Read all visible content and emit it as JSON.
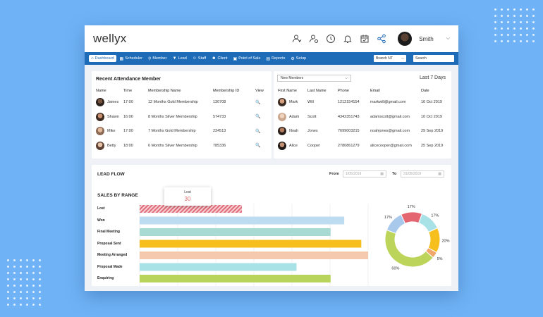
{
  "app": {
    "logo": "wellyx",
    "user_name": "Smith"
  },
  "top_icons": [
    "add-user-icon",
    "user-settings-icon",
    "clock-icon",
    "bell-icon",
    "calendar-icon",
    "share-icon"
  ],
  "nav": {
    "items": [
      {
        "label": "Dashboard",
        "icon": "home-icon",
        "active": true
      },
      {
        "label": "Scheduler",
        "icon": "calendar-icon"
      },
      {
        "label": "Member",
        "icon": "members-icon"
      },
      {
        "label": "Lead",
        "icon": "funnel-icon"
      },
      {
        "label": "Staff",
        "icon": "staff-icon"
      },
      {
        "label": "Client",
        "icon": "client-icon"
      },
      {
        "label": "Point of Sale",
        "icon": "monitor-icon"
      },
      {
        "label": "Reports",
        "icon": "reports-icon"
      },
      {
        "label": "Setup",
        "icon": "gear-icon"
      }
    ],
    "branch": "Branch NT",
    "search_placeholder": "Search"
  },
  "attendance": {
    "title": "Recent Attendance Member",
    "columns": [
      "Name",
      "Time",
      "Membership Name",
      "Membership ID",
      "View"
    ],
    "rows": [
      {
        "name": "James",
        "time": "17:00",
        "membership": "12 Months Gold Membership",
        "id": "130708"
      },
      {
        "name": "Shawn",
        "time": "16:00",
        "membership": "8 Months Silver Membership",
        "id": "574733"
      },
      {
        "name": "Mike",
        "time": "17:00",
        "membership": "7 Months Gold Membership",
        "id": "234513"
      },
      {
        "name": "Betty",
        "time": "18:00",
        "membership": "6 Months Silver Membership",
        "id": "785336"
      }
    ]
  },
  "members": {
    "dropdown": "New Members",
    "period": "Last 7 Days",
    "columns": [
      "First Name",
      "Last Name",
      "Phone",
      "Email",
      "Date"
    ],
    "rows": [
      {
        "first": "Mark",
        "last": "Will",
        "phone": "1212154154",
        "email": "markwill@gmail.com",
        "date": "16 Oct 2019"
      },
      {
        "first": "Adam",
        "last": "Scott",
        "phone": "4342351743",
        "email": "adamscott@gmail.com",
        "date": "10 Oct 2019"
      },
      {
        "first": "Noah",
        "last": "Jones",
        "phone": "7699003215",
        "email": "noahjones@gmail.com",
        "date": "29 Sep 2019"
      },
      {
        "first": "Alice",
        "last": "Cooper",
        "phone": "2780861279",
        "email": "alicecooper@gmail.com",
        "date": "25 Sep 2019"
      }
    ]
  },
  "lead_flow": {
    "title": "LEAD FLOW",
    "from_label": "From",
    "from_value": "1/05/2019",
    "to_label": "To",
    "to_value": "31/05/2019"
  },
  "chart_data": [
    {
      "type": "bar",
      "orientation": "horizontal",
      "title": "SALES BY RANGE",
      "categories": [
        "Lost",
        "Won",
        "Final Meeting",
        "Proposal Sent",
        "Meeting Arranged",
        "Proposal Made",
        "Enquiring"
      ],
      "values": [
        30,
        60,
        56,
        65,
        67,
        46,
        56
      ],
      "colors": [
        "#e06b78",
        "#bddcf2",
        "#a8dad3",
        "#f6bf1e",
        "#f5c9ae",
        "#a9e2e6",
        "#b9d45a"
      ],
      "xlim": [
        0,
        67
      ],
      "grid": true,
      "tooltip": {
        "label": "Lost",
        "value": "30"
      }
    },
    {
      "type": "pie",
      "style": "donut",
      "labels": [
        "17%",
        "17%",
        "20%",
        "5%",
        "60%",
        "17%"
      ],
      "values": [
        17,
        17,
        20,
        5,
        60,
        17
      ],
      "colors": [
        "#e46670",
        "#a9e2e6",
        "#f6bf1e",
        "#f0a76b",
        "#bcd45a",
        "#a9c9ec"
      ]
    }
  ]
}
